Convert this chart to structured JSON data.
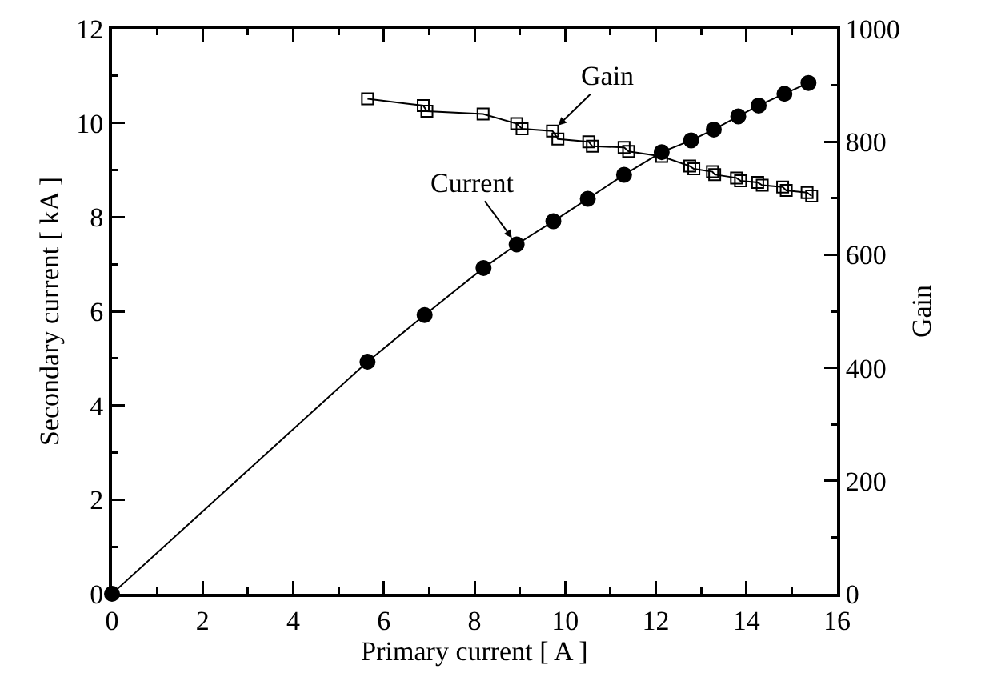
{
  "chart_data": {
    "type": "line",
    "xlabel": "Primary current [ A ]",
    "ylabel": "Secondary current [ kA ]",
    "y2label": "Gain",
    "xlim": [
      0,
      16
    ],
    "xticks": [
      0,
      2,
      4,
      6,
      8,
      10,
      12,
      14,
      16
    ],
    "ylim": [
      0,
      12
    ],
    "yticks": [
      0,
      2,
      4,
      6,
      8,
      10,
      12
    ],
    "y2lim": [
      0,
      1000
    ],
    "y2ticks": [
      0,
      200,
      400,
      600,
      800,
      1000
    ],
    "grid": false,
    "series": [
      {
        "name": "Current",
        "color": "#000000",
        "marker": "circle",
        "x": [
          0,
          5.64,
          6.9,
          8.2,
          8.93,
          9.74,
          10.5,
          11.3,
          12.13,
          12.78,
          13.28,
          13.82,
          14.27,
          14.84,
          15.37
        ],
        "values": [
          0,
          4.93,
          5.92,
          6.92,
          7.42,
          7.91,
          8.39,
          8.9,
          9.38,
          9.63,
          9.86,
          10.14,
          10.37,
          10.62,
          10.85
        ]
      },
      {
        "name": "Gain",
        "color": "#000000",
        "marker": "square",
        "axis": "y2",
        "x": [
          5.64,
          6.87,
          6.95,
          8.19,
          8.93,
          9.05,
          9.72,
          9.84,
          10.52,
          10.6,
          11.3,
          11.4,
          12.13,
          12.75,
          12.84,
          13.25,
          13.3,
          13.78,
          13.87,
          14.25,
          14.35,
          14.8,
          14.88,
          15.34,
          15.44
        ],
        "values": [
          876,
          864,
          854,
          849,
          832,
          823,
          819,
          805,
          800,
          792,
          790,
          783,
          774,
          757,
          752,
          747,
          742,
          736,
          731,
          728,
          723,
          720,
          714,
          710,
          704
        ]
      }
    ]
  }
}
